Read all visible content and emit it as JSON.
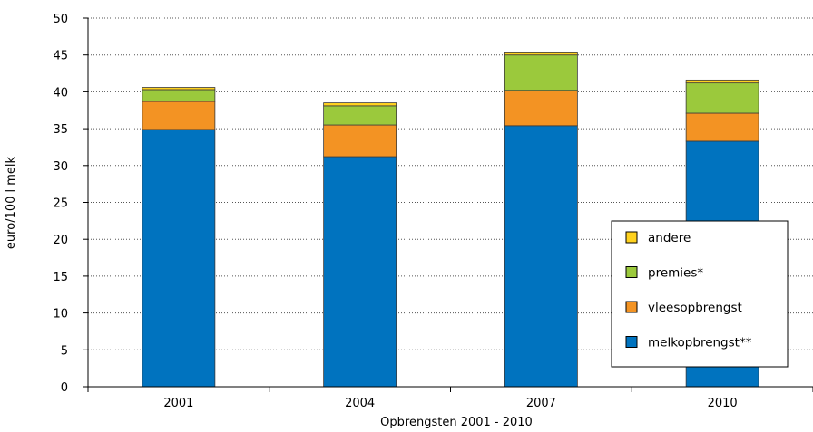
{
  "chart_data": {
    "type": "bar",
    "stacked": true,
    "title": "",
    "xlabel": "Opbrengsten 2001 - 2010",
    "ylabel": "euro/100 l melk",
    "ylim": [
      0,
      50
    ],
    "yticks": [
      0,
      5,
      10,
      15,
      20,
      25,
      30,
      35,
      40,
      45,
      50
    ],
    "grid": "horizontal-dotted",
    "legend_position": "right",
    "categories": [
      "2001",
      "2004",
      "2007",
      "2010"
    ],
    "series": [
      {
        "name": "melkopbrengst**",
        "color": "#0073bf",
        "values": [
          34.9,
          31.2,
          35.4,
          33.3
        ]
      },
      {
        "name": "vleesopbrengst",
        "color": "#f39323",
        "values": [
          3.8,
          4.3,
          4.8,
          3.8
        ]
      },
      {
        "name": "premies*",
        "color": "#9bc93c",
        "values": [
          1.6,
          2.6,
          4.8,
          4.1
        ]
      },
      {
        "name": "andere",
        "color": "#ffd21f",
        "values": [
          0.3,
          0.4,
          0.4,
          0.4
        ]
      }
    ],
    "legend_order": [
      "andere",
      "premies*",
      "vleesopbrengst",
      "melkopbrengst**"
    ]
  }
}
